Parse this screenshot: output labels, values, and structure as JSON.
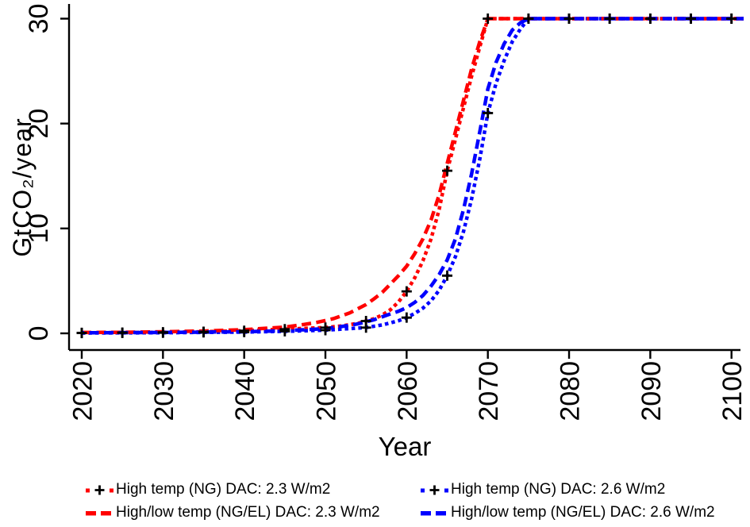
{
  "chart_data": {
    "type": "line",
    "title": "",
    "xlabel": "Year",
    "ylabel": "GtCO₂/year",
    "xlim": [
      2020,
      2100
    ],
    "ylim": [
      0,
      30
    ],
    "x_ticks": [
      2020,
      2030,
      2040,
      2050,
      2060,
      2070,
      2080,
      2090,
      2100
    ],
    "y_ticks": [
      0,
      10,
      20,
      30
    ],
    "grid": "off",
    "legend_position": "bottom",
    "axis_color": "#000000",
    "marker_color": "#000000",
    "series": [
      {
        "name": "High temp (NG) DAC: 2.3 W/m2",
        "color": "#ff0000",
        "style": "dotted",
        "marker": "plus",
        "marker_years": [
          2020,
          2025,
          2030,
          2035,
          2040,
          2045,
          2050,
          2055,
          2060,
          2065,
          2070,
          2075,
          2080,
          2085,
          2090,
          2095,
          2100
        ],
        "points": [
          [
            2020,
            0.05
          ],
          [
            2025,
            0.07
          ],
          [
            2030,
            0.1
          ],
          [
            2035,
            0.15
          ],
          [
            2040,
            0.25
          ],
          [
            2045,
            0.4
          ],
          [
            2050,
            0.55
          ],
          [
            2052,
            0.7
          ],
          [
            2054,
            0.95
          ],
          [
            2056,
            1.4
          ],
          [
            2057,
            1.75
          ],
          [
            2058,
            2.25
          ],
          [
            2059,
            3.0
          ],
          [
            2060,
            4.0
          ],
          [
            2061,
            5.3
          ],
          [
            2062,
            6.9
          ],
          [
            2063,
            9.0
          ],
          [
            2064,
            11.8
          ],
          [
            2065,
            15.5
          ],
          [
            2066,
            18.5
          ],
          [
            2067,
            21.5
          ],
          [
            2068,
            24.5
          ],
          [
            2069,
            27.3
          ],
          [
            2070,
            30
          ],
          [
            2075,
            30
          ],
          [
            2080,
            30
          ],
          [
            2085,
            30
          ],
          [
            2090,
            30
          ],
          [
            2095,
            30
          ],
          [
            2100,
            30
          ]
        ]
      },
      {
        "name": "High/low temp (NG/EL) DAC: 2.3 W/m2",
        "color": "#ff0000",
        "style": "dashed",
        "marker": "none",
        "marker_years": [],
        "points": [
          [
            2020,
            0.08
          ],
          [
            2025,
            0.1
          ],
          [
            2030,
            0.15
          ],
          [
            2035,
            0.22
          ],
          [
            2040,
            0.35
          ],
          [
            2045,
            0.6
          ],
          [
            2047,
            0.8
          ],
          [
            2049,
            1.05
          ],
          [
            2051,
            1.4
          ],
          [
            2053,
            1.95
          ],
          [
            2055,
            2.75
          ],
          [
            2056,
            3.3
          ],
          [
            2057,
            3.9
          ],
          [
            2058,
            4.7
          ],
          [
            2059,
            5.5
          ],
          [
            2060,
            6.4
          ],
          [
            2061,
            7.6
          ],
          [
            2062,
            9.0
          ],
          [
            2063,
            10.8
          ],
          [
            2064,
            13.2
          ],
          [
            2065,
            16.2
          ],
          [
            2066,
            19.2
          ],
          [
            2067,
            22.2
          ],
          [
            2068,
            25.2
          ],
          [
            2069,
            27.8
          ],
          [
            2070,
            30
          ],
          [
            2075,
            30
          ],
          [
            2080,
            30
          ],
          [
            2085,
            30
          ],
          [
            2090,
            30
          ],
          [
            2095,
            30
          ],
          [
            2100,
            30
          ]
        ]
      },
      {
        "name": "High temp (NG) DAC: 2.6 W/m2",
        "color": "#0000ff",
        "style": "dotted",
        "marker": "plus",
        "marker_years": [
          2020,
          2025,
          2030,
          2035,
          2040,
          2045,
          2050,
          2055,
          2060,
          2065,
          2070,
          2075,
          2080,
          2085,
          2090,
          2095,
          2100
        ],
        "points": [
          [
            2020,
            0.03
          ],
          [
            2030,
            0.06
          ],
          [
            2040,
            0.12
          ],
          [
            2045,
            0.2
          ],
          [
            2050,
            0.3
          ],
          [
            2055,
            0.55
          ],
          [
            2057,
            0.8
          ],
          [
            2058,
            1.0
          ],
          [
            2059,
            1.2
          ],
          [
            2060,
            1.5
          ],
          [
            2061,
            1.9
          ],
          [
            2062,
            2.4
          ],
          [
            2063,
            3.1
          ],
          [
            2064,
            4.1
          ],
          [
            2065,
            5.5
          ],
          [
            2066,
            7.3
          ],
          [
            2067,
            9.7
          ],
          [
            2068,
            12.8
          ],
          [
            2069,
            16.6
          ],
          [
            2070,
            21
          ],
          [
            2071,
            23.8
          ],
          [
            2072,
            26
          ],
          [
            2073,
            27.8
          ],
          [
            2074,
            29
          ],
          [
            2075,
            30
          ],
          [
            2080,
            30
          ],
          [
            2085,
            30
          ],
          [
            2090,
            30
          ],
          [
            2095,
            30
          ],
          [
            2100,
            30
          ]
        ]
      },
      {
        "name": "High/low temp (NG/EL) DAC: 2.6 W/m2",
        "color": "#0000ff",
        "style": "dashed",
        "marker": "none",
        "marker_years": [],
        "points": [
          [
            2020,
            0.05
          ],
          [
            2030,
            0.08
          ],
          [
            2040,
            0.15
          ],
          [
            2045,
            0.25
          ],
          [
            2050,
            0.45
          ],
          [
            2052,
            0.65
          ],
          [
            2054,
            0.9
          ],
          [
            2056,
            1.3
          ],
          [
            2058,
            1.85
          ],
          [
            2059,
            2.1
          ],
          [
            2060,
            2.45
          ],
          [
            2061,
            2.95
          ],
          [
            2062,
            3.6
          ],
          [
            2063,
            4.5
          ],
          [
            2064,
            5.6
          ],
          [
            2065,
            7.0
          ],
          [
            2066,
            9.0
          ],
          [
            2067,
            11.8
          ],
          [
            2068,
            15.2
          ],
          [
            2069,
            19.2
          ],
          [
            2070,
            23.3
          ],
          [
            2071,
            25.8
          ],
          [
            2072,
            27.6
          ],
          [
            2073,
            28.9
          ],
          [
            2074,
            29.6
          ],
          [
            2075,
            30
          ],
          [
            2080,
            30
          ],
          [
            2085,
            30
          ],
          [
            2090,
            30
          ],
          [
            2095,
            30
          ],
          [
            2100,
            30
          ]
        ]
      }
    ]
  }
}
